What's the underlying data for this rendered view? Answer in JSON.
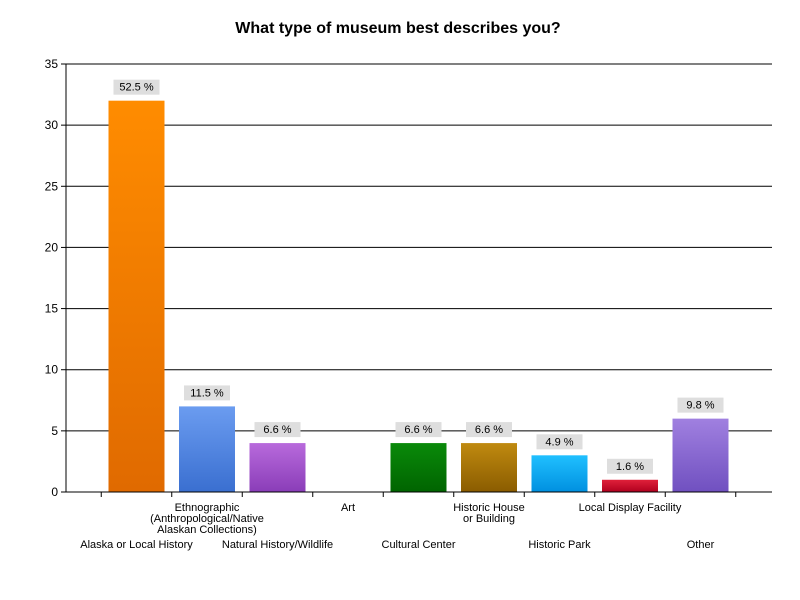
{
  "chart_data": {
    "type": "bar",
    "title": "What type of museum best describes you?",
    "xlabel": "",
    "ylabel": "",
    "ylim": [
      0,
      35
    ],
    "yticks": [
      0,
      5,
      10,
      15,
      20,
      25,
      30,
      35
    ],
    "grid": true,
    "legend": "none",
    "categories": [
      "Alaska or Local History",
      "Ethnographic (Anthropological/Native Alaskan Collections)",
      "Natural History/Wildlife",
      "Art",
      "Cultural Center",
      "Historic House or Building",
      "Historic Park",
      "Local Display Facility",
      "Other"
    ],
    "category_label_lines": [
      [
        "Alaska or Local History"
      ],
      [
        "Ethnographic",
        "(Anthropological/Native",
        "Alaskan Collections)"
      ],
      [
        "Natural History/Wildlife"
      ],
      [
        "Art"
      ],
      [
        "Cultural Center"
      ],
      [
        "Historic House",
        "or Building"
      ],
      [
        "Historic Park"
      ],
      [
        "Local Display Facility"
      ],
      [
        "Other"
      ]
    ],
    "values": [
      32,
      7,
      4,
      0,
      4,
      4,
      3,
      1,
      6
    ],
    "data_labels": [
      "52.5 %",
      "11.5 %",
      "6.6 %",
      "",
      "6.6 %",
      "6.6 %",
      "4.9 %",
      "1.6 %",
      "9.8 %"
    ],
    "colors": [
      [
        "#ff8c00",
        "#e06a00"
      ],
      [
        "#6b9cf0",
        "#3a6fd0"
      ],
      [
        "#b86adc",
        "#8a3db8"
      ],
      [
        "#cccccc",
        "#999999"
      ],
      [
        "#0a8a0a",
        "#006400"
      ],
      [
        "#c08a10",
        "#8a5c00"
      ],
      [
        "#20c0ff",
        "#0090e0"
      ],
      [
        "#e0203a",
        "#b0001e"
      ],
      [
        "#a080e0",
        "#7050c0"
      ]
    ]
  }
}
